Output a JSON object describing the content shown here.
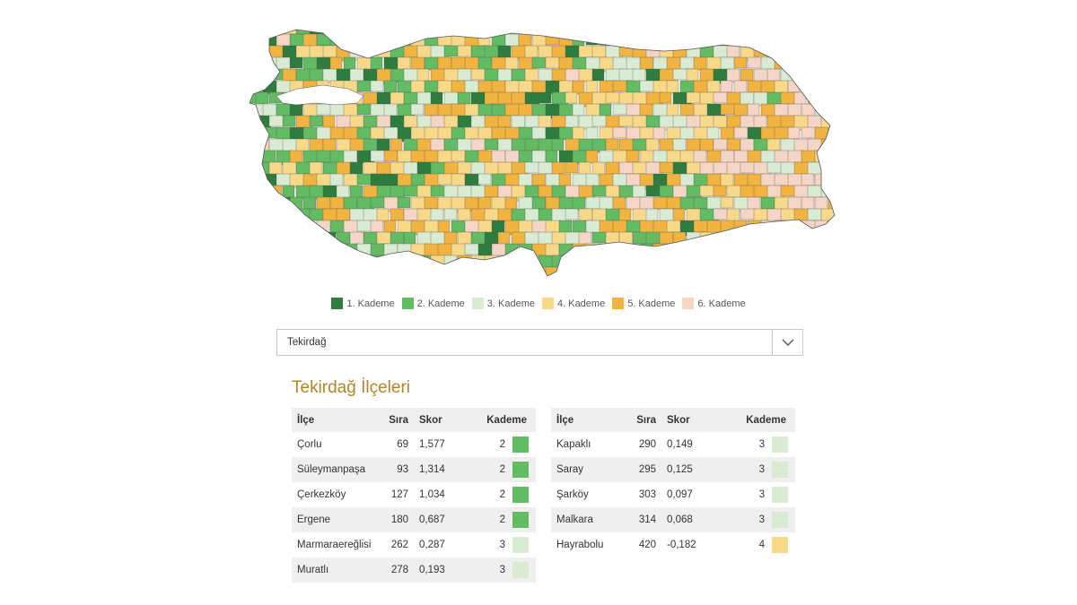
{
  "map": {
    "colors": {
      "1": "#2e7d3e",
      "2": "#63bb63",
      "3": "#d9ecd3",
      "4": "#f8d98a",
      "5": "#f2b441",
      "6": "#f5d5c5"
    },
    "background": "#ffffff",
    "outline": "#555555"
  },
  "legend": [
    {
      "label": "1. Kademe",
      "color": "#2e7d3e"
    },
    {
      "label": "2. Kademe",
      "color": "#63bb63"
    },
    {
      "label": "3. Kademe",
      "color": "#d9ecd3"
    },
    {
      "label": "4. Kademe",
      "color": "#f8d98a"
    },
    {
      "label": "5. Kademe",
      "color": "#f2b441"
    },
    {
      "label": "6. Kademe",
      "color": "#f5d5c5"
    }
  ],
  "select": {
    "value": "Tekirdağ",
    "icon": "chevron-down-icon"
  },
  "title": "Tekirdağ İlçeleri",
  "columns": {
    "ilce": "İlçe",
    "sira": "Sıra",
    "skor": "Skor",
    "kademe": "Kademe"
  },
  "left_rows": [
    {
      "ilce": "Çorlu",
      "sira": "69",
      "skor": "1,577",
      "kademe": "2"
    },
    {
      "ilce": "Süleymanpaşa",
      "sira": "93",
      "skor": "1,314",
      "kademe": "2"
    },
    {
      "ilce": "Çerkezköy",
      "sira": "127",
      "skor": "1,034",
      "kademe": "2"
    },
    {
      "ilce": "Ergene",
      "sira": "180",
      "skor": "0,687",
      "kademe": "2"
    },
    {
      "ilce": "Marmaraereğlisi",
      "sira": "262",
      "skor": "0,287",
      "kademe": "3"
    },
    {
      "ilce": "Muratlı",
      "sira": "278",
      "skor": "0,193",
      "kademe": "3"
    }
  ],
  "right_rows": [
    {
      "ilce": "Kapaklı",
      "sira": "290",
      "skor": "0,149",
      "kademe": "3"
    },
    {
      "ilce": "Saray",
      "sira": "295",
      "skor": "0,125",
      "kademe": "3"
    },
    {
      "ilce": "Şarköy",
      "sira": "303",
      "skor": "0,097",
      "kademe": "3"
    },
    {
      "ilce": "Malkara",
      "sira": "314",
      "skor": "0,068",
      "kademe": "3"
    },
    {
      "ilce": "Hayrabolu",
      "sira": "420",
      "skor": "-0,182",
      "kademe": "4"
    }
  ]
}
